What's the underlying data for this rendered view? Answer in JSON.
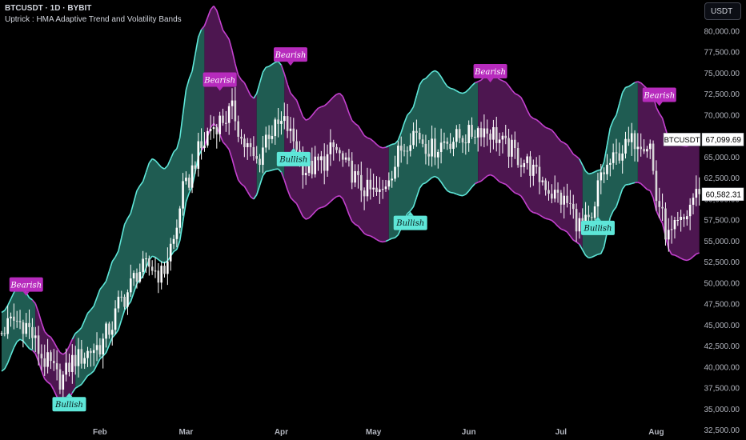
{
  "header": {
    "title": "BTCUSDT · 1D · BYBIT",
    "indicator": "Uptrick : HMA Adaptive Trend and Volatility Bands",
    "currency": "USDT"
  },
  "colors": {
    "background": "#000000",
    "bull_fill": "#1f5c52",
    "bear_fill": "#4d1650",
    "bull_line": "#5ee6d8",
    "bear_line": "#c441cf",
    "candle": "#ffffff",
    "axis_text": "#b2b5be",
    "tag_bearish": "#b72bbd",
    "tag_bullish": "#5ee6d8"
  },
  "chart_data": {
    "type": "candlestick",
    "symbol": "BTCUSDT",
    "exchange": "BYBIT",
    "timeframe": "1D",
    "ylim": [
      31500,
      82000
    ],
    "y_ticks": [
      32500,
      35000,
      37500,
      40000,
      42500,
      45000,
      47500,
      50000,
      52500,
      55000,
      57500,
      60000,
      62500,
      65000,
      67500,
      70000,
      72500,
      75000,
      77500,
      80000
    ],
    "x_labels": [
      {
        "day": 32,
        "label": "Feb"
      },
      {
        "day": 60,
        "label": "Mar"
      },
      {
        "day": 91,
        "label": "Apr"
      },
      {
        "day": 121,
        "label": "May"
      },
      {
        "day": 152,
        "label": "Jun"
      },
      {
        "day": 182,
        "label": "Jul"
      },
      {
        "day": 213,
        "label": "Aug"
      }
    ],
    "price_key_days": [
      0,
      5,
      8,
      16,
      20,
      25,
      33,
      36,
      40,
      46,
      49,
      53,
      57,
      60,
      66,
      69,
      73,
      76,
      80,
      84,
      88,
      93,
      96,
      100,
      106,
      109,
      114,
      118,
      120,
      124,
      128,
      131,
      135,
      141,
      146,
      152,
      157,
      160,
      166,
      171,
      176,
      181,
      185,
      189,
      193,
      196,
      200,
      203,
      208,
      212,
      214,
      218,
      222,
      227
    ],
    "price_key_values": [
      44000,
      45500,
      45200,
      40500,
      38500,
      41000,
      42500,
      44500,
      48000,
      51500,
      52000,
      51000,
      55000,
      61000,
      66000,
      68500,
      69500,
      70500,
      66500,
      64500,
      68000,
      69000,
      67000,
      63500,
      64500,
      66000,
      63500,
      61500,
      61000,
      60500,
      63500,
      66000,
      68000,
      66000,
      67000,
      67500,
      68500,
      68000,
      66000,
      64500,
      62500,
      60500,
      59500,
      57000,
      57000,
      63000,
      64500,
      66000,
      67200,
      66500,
      60000,
      55500,
      57000,
      60582
    ],
    "band_key_days": [
      0,
      6,
      10,
      15,
      20,
      25,
      29,
      33,
      37,
      41,
      45,
      49,
      53,
      57,
      61,
      65,
      69,
      73,
      78,
      82,
      86,
      90,
      95,
      99,
      104,
      110,
      115,
      119,
      124,
      128,
      133,
      137,
      141,
      146,
      150,
      155,
      159,
      163,
      168,
      173,
      178,
      183,
      187,
      191,
      195,
      199,
      203,
      207,
      211,
      214,
      218,
      223,
      227
    ],
    "band_key_values": [
      43000,
      46500,
      45000,
      41000,
      38500,
      41000,
      43000,
      45500,
      48500,
      52500,
      56000,
      59000,
      58000,
      60000,
      67500,
      73000,
      76000,
      73000,
      68000,
      66000,
      69500,
      70000,
      66000,
      63500,
      65000,
      66500,
      63000,
      61500,
      60500,
      61000,
      64500,
      68000,
      69000,
      67000,
      66500,
      68000,
      69000,
      68000,
      66500,
      64000,
      63000,
      61500,
      60000,
      58000,
      58500,
      64000,
      67500,
      68000,
      67000,
      64000,
      60000,
      59500,
      60500
    ],
    "band_key_widths": [
      3500,
      3200,
      3000,
      2800,
      3000,
      3300,
      3800,
      4200,
      4600,
      5200,
      5600,
      5800,
      5600,
      6000,
      6800,
      7200,
      7000,
      6600,
      6200,
      6000,
      6200,
      6400,
      6200,
      5900,
      6000,
      6100,
      6000,
      5800,
      5600,
      5600,
      5900,
      6200,
      6300,
      6200,
      6100,
      6000,
      6100,
      6100,
      5900,
      5600,
      5400,
      5200,
      5100,
      5000,
      5000,
      5400,
      5800,
      6000,
      6000,
      6200,
      6600,
      6800,
      6900
    ],
    "trend_key_days": [
      0,
      8,
      12,
      22,
      25,
      42,
      50,
      60,
      63,
      67,
      80,
      85,
      88,
      95,
      104,
      112,
      122,
      130,
      134,
      140,
      147,
      153,
      156,
      164,
      170,
      186,
      191,
      200,
      203,
      210,
      216,
      226,
      227
    ],
    "trend_key_values": [
      1,
      1,
      -1,
      -1,
      1,
      1,
      1,
      1,
      1,
      -1,
      -1,
      1,
      1,
      -1,
      -1,
      -1,
      -1,
      1,
      1,
      1,
      1,
      1,
      -1,
      -1,
      -1,
      -1,
      1,
      1,
      1,
      -1,
      -1,
      -1,
      -1
    ],
    "annotations": [
      {
        "label": "Bearish",
        "type": "bearish",
        "day": 8,
        "price": 48400
      },
      {
        "label": "Bullish",
        "type": "bullish",
        "day": 22,
        "price": 37000
      },
      {
        "label": "Bearish",
        "type": "bearish",
        "day": 71,
        "price": 72800
      },
      {
        "label": "Bearish",
        "type": "bearish",
        "day": 94,
        "price": 75800
      },
      {
        "label": "Bullish",
        "type": "bullish",
        "day": 95,
        "price": 66200
      },
      {
        "label": "Bullish",
        "type": "bullish",
        "day": 133,
        "price": 58600
      },
      {
        "label": "Bearish",
        "type": "bearish",
        "day": 159,
        "price": 73800
      },
      {
        "label": "Bullish",
        "type": "bullish",
        "day": 194,
        "price": 58000
      },
      {
        "label": "Bearish",
        "type": "bearish",
        "day": 214,
        "price": 71000
      }
    ],
    "price_labels": [
      {
        "name": "BTCUSDT",
        "value": 67099.69,
        "text": "67,099.69"
      },
      {
        "name": "last",
        "value": 60582.31,
        "text": "60,582.31"
      }
    ]
  }
}
